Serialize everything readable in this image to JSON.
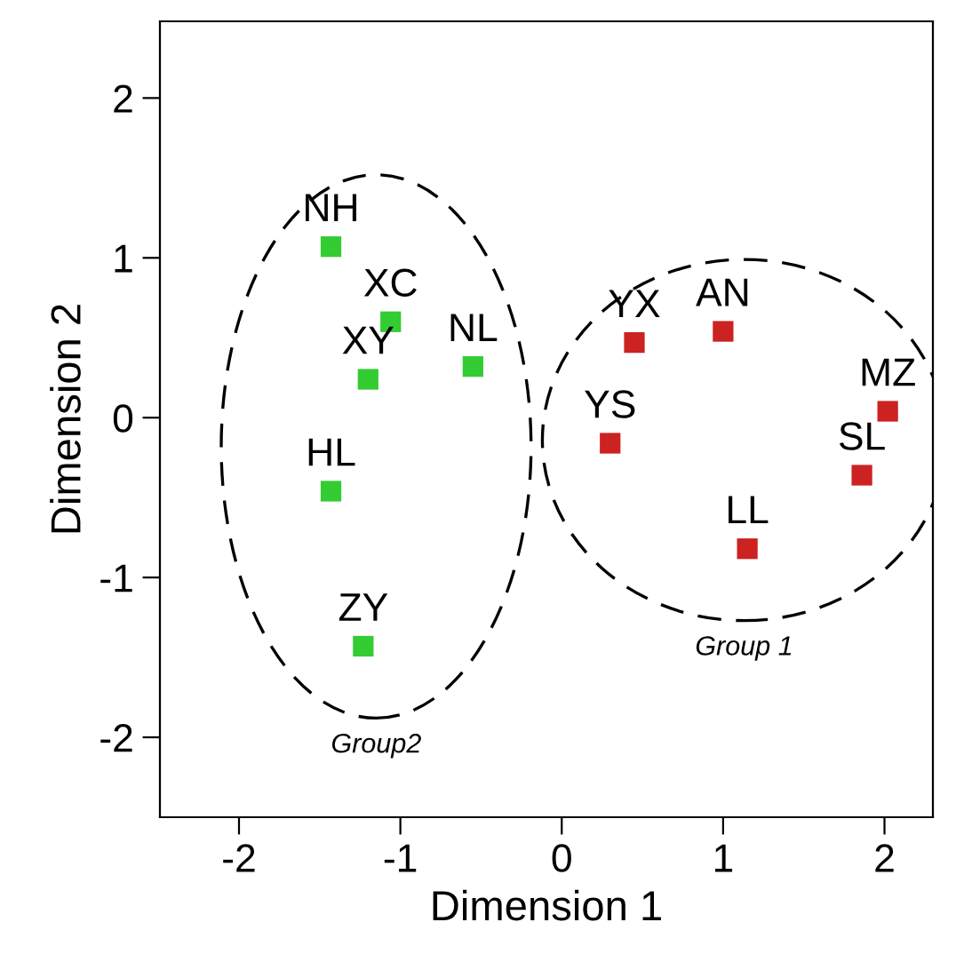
{
  "chart_data": {
    "type": "scatter",
    "xlabel": "Dimension 1",
    "ylabel": "Dimension 2",
    "xlim": [
      -2.49,
      2.3
    ],
    "ylim": [
      -2.5,
      2.48
    ],
    "xticks": [
      -2,
      -1,
      0,
      1,
      2
    ],
    "yticks": [
      -2,
      -1,
      0,
      1,
      2
    ],
    "grid": false,
    "legend": false,
    "marker": "square",
    "series": [
      {
        "color": "#33cc33",
        "x": [
          -1.43,
          -1.06,
          -1.2,
          -0.55,
          -1.43,
          -1.23
        ],
        "values": [
          1.07,
          0.6,
          0.24,
          0.32,
          -0.46,
          -1.43
        ],
        "value_labels": [
          "NH",
          "XC",
          "XY",
          "NL",
          "HL",
          "ZY"
        ]
      },
      {
        "color": "#cc2222",
        "x": [
          0.45,
          1.0,
          0.3,
          2.02,
          1.86,
          1.15
        ],
        "values": [
          0.47,
          0.54,
          -0.16,
          0.04,
          -0.36,
          -0.82
        ],
        "value_labels": [
          "YX",
          "AN",
          "YS",
          "MZ",
          "SL",
          "LL"
        ]
      }
    ],
    "annotations": [
      "Group2",
      "Group 1"
    ]
  }
}
